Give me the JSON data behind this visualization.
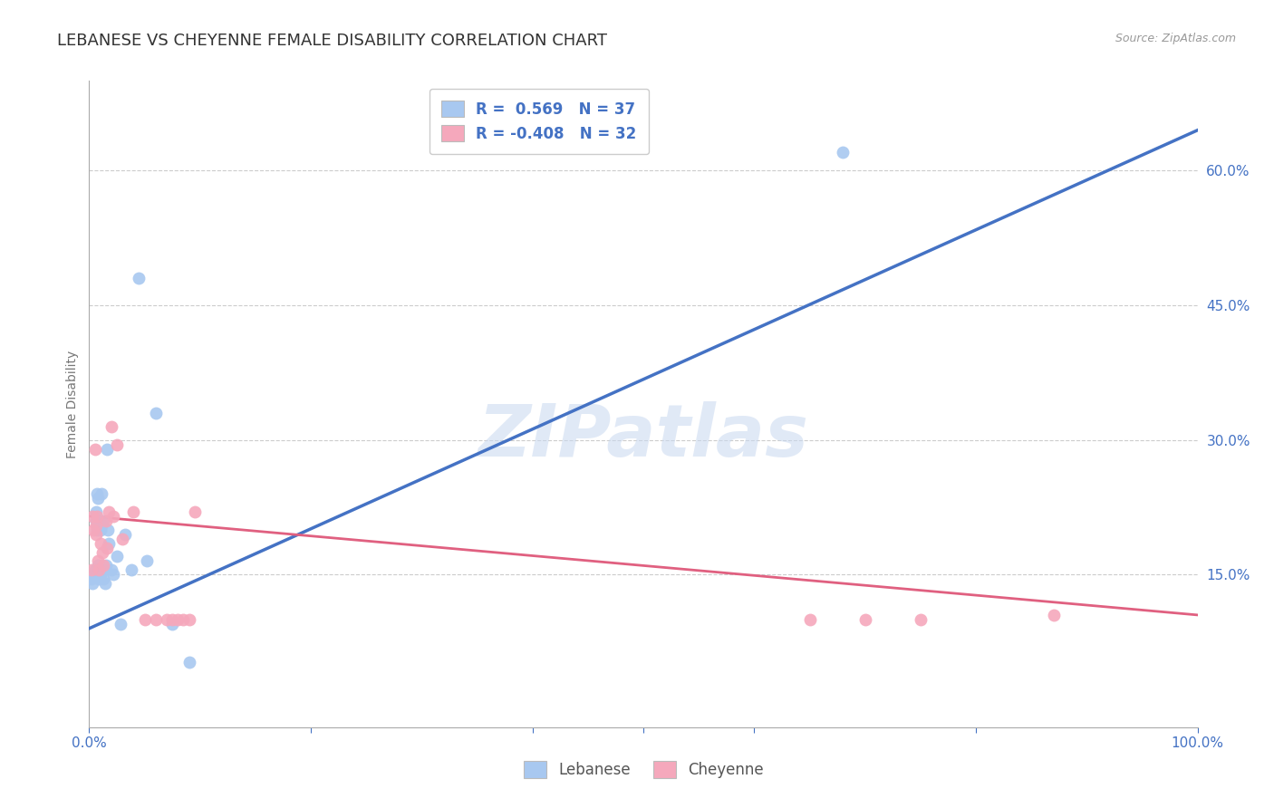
{
  "title": "LEBANESE VS CHEYENNE FEMALE DISABILITY CORRELATION CHART",
  "source": "Source: ZipAtlas.com",
  "ylabel": "Female Disability",
  "watermark": "ZIPatlas",
  "lebanese_color": "#A8C8F0",
  "cheyenne_color": "#F5A8BC",
  "lebanese_line_color": "#4472C4",
  "cheyenne_line_color": "#E06080",
  "lebanese_R": 0.569,
  "lebanese_N": 37,
  "cheyenne_R": -0.408,
  "cheyenne_N": 32,
  "lebanese_x": [
    0.002,
    0.003,
    0.004,
    0.005,
    0.005,
    0.006,
    0.006,
    0.007,
    0.007,
    0.008,
    0.008,
    0.009,
    0.009,
    0.01,
    0.01,
    0.011,
    0.011,
    0.012,
    0.013,
    0.013,
    0.014,
    0.015,
    0.016,
    0.017,
    0.018,
    0.02,
    0.022,
    0.025,
    0.028,
    0.032,
    0.038,
    0.045,
    0.052,
    0.06,
    0.075,
    0.09,
    0.68
  ],
  "lebanese_y": [
    0.145,
    0.14,
    0.148,
    0.155,
    0.148,
    0.21,
    0.22,
    0.24,
    0.2,
    0.235,
    0.16,
    0.148,
    0.145,
    0.2,
    0.15,
    0.205,
    0.24,
    0.155,
    0.21,
    0.145,
    0.14,
    0.16,
    0.29,
    0.2,
    0.185,
    0.155,
    0.15,
    0.17,
    0.095,
    0.195,
    0.155,
    0.48,
    0.165,
    0.33,
    0.095,
    0.052,
    0.62
  ],
  "cheyenne_x": [
    0.002,
    0.003,
    0.004,
    0.005,
    0.006,
    0.006,
    0.007,
    0.008,
    0.009,
    0.01,
    0.012,
    0.013,
    0.015,
    0.016,
    0.018,
    0.02,
    0.022,
    0.025,
    0.03,
    0.04,
    0.05,
    0.06,
    0.07,
    0.075,
    0.08,
    0.085,
    0.09,
    0.095,
    0.65,
    0.7,
    0.75,
    0.87
  ],
  "cheyenne_y": [
    0.155,
    0.215,
    0.2,
    0.29,
    0.195,
    0.205,
    0.215,
    0.165,
    0.155,
    0.185,
    0.175,
    0.16,
    0.21,
    0.18,
    0.22,
    0.315,
    0.215,
    0.295,
    0.19,
    0.22,
    0.1,
    0.1,
    0.1,
    0.1,
    0.1,
    0.1,
    0.1,
    0.22,
    0.1,
    0.1,
    0.1,
    0.105
  ],
  "leb_line_x0": 0.0,
  "leb_line_y0": 0.09,
  "leb_line_x1": 1.0,
  "leb_line_y1": 0.645,
  "chey_line_x0": 0.0,
  "chey_line_y0": 0.215,
  "chey_line_x1": 1.0,
  "chey_line_y1": 0.105,
  "xlim": [
    0.0,
    1.0
  ],
  "ylim": [
    -0.02,
    0.7
  ],
  "right_ytick_vals": [
    0.15,
    0.3,
    0.45,
    0.6
  ],
  "right_ytick_labels": [
    "15.0%",
    "30.0%",
    "45.0%",
    "60.0%"
  ],
  "xtick_positions": [
    0.0,
    0.2,
    0.4,
    0.5,
    0.6,
    0.8,
    1.0
  ],
  "xtick_labels": [
    "0.0%",
    "",
    "",
    "",
    "",
    "",
    "100.0%"
  ],
  "grid_yticks": [
    0.15,
    0.3,
    0.45,
    0.6
  ],
  "background_color": "#FFFFFF",
  "title_fontsize": 13,
  "axis_label_fontsize": 10,
  "tick_fontsize": 11,
  "scatter_size": 100
}
